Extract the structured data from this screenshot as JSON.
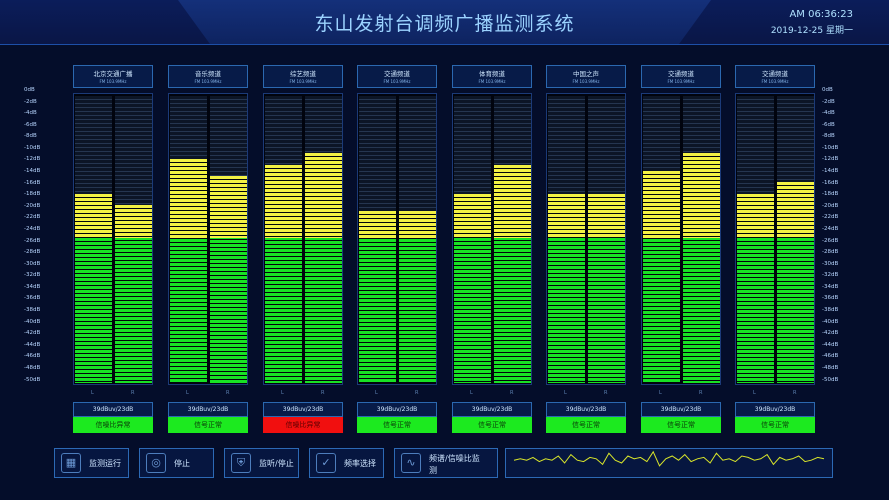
{
  "header": {
    "title": "东山发射台调频广播监测系统",
    "time": "AM 06:36:23",
    "date": "2019-12-25  星期一"
  },
  "scale_ticks": [
    "0dB",
    "-2dB",
    "-4dB",
    "-6dB",
    "-8dB",
    "-10dB",
    "-12dB",
    "-14dB",
    "-16dB",
    "-18dB",
    "-20dB",
    "-22dB",
    "-24dB",
    "-26dB",
    "-28dB",
    "-30dB",
    "-32dB",
    "-34dB",
    "-36dB",
    "-38dB",
    "-40dB",
    "-42dB",
    "-44dB",
    "-46dB",
    "-48dB",
    "-50dB"
  ],
  "right_scale_ticks": [
    "0dB",
    "-2dB",
    "-4dB",
    "-6dB",
    "-8dB",
    "-10dB",
    "-12dB",
    "-14dB",
    "-16dB",
    "-18dB",
    "-20dB",
    "-22dB",
    "-24dB",
    "-26dB",
    "-28dB",
    "-30dB",
    "-32dB",
    "-34dB",
    "-36dB",
    "-38dB",
    "-40dB",
    "-42dB",
    "-44dB",
    "-46dB",
    "-48dB",
    "-50dB"
  ],
  "lr_labels": {
    "left": "L",
    "right": "R"
  },
  "channels": [
    {
      "name": "北京交通广播",
      "freq": "FM 103.9MHz",
      "level_l_db": -17,
      "level_r_db": -19,
      "value": "39dBuv/23dB",
      "status": "信噪比异常",
      "alarm": false
    },
    {
      "name": "音乐频道",
      "freq": "FM 103.9MHz",
      "level_l_db": -11,
      "level_r_db": -14,
      "value": "39dBuv/23dB",
      "status": "信号正常",
      "alarm": false
    },
    {
      "name": "综艺频道",
      "freq": "FM 103.9MHz",
      "level_l_db": -12,
      "level_r_db": -10,
      "value": "39dBuv/23dB",
      "status": "信噪比异常",
      "alarm": true
    },
    {
      "name": "交通频道",
      "freq": "FM 103.9MHz",
      "level_l_db": -20,
      "level_r_db": -20,
      "value": "39dBuv/23dB",
      "status": "信号正常",
      "alarm": false
    },
    {
      "name": "体育频道",
      "freq": "FM 103.9MHz",
      "level_l_db": -17,
      "level_r_db": -12,
      "value": "39dBuv/23dB",
      "status": "信号正常",
      "alarm": false
    },
    {
      "name": "中国之声",
      "freq": "FM 103.9MHz",
      "level_l_db": -17,
      "level_r_db": -17,
      "value": "39dBuv/23dB",
      "status": "信号正常",
      "alarm": false
    },
    {
      "name": "交通频道",
      "freq": "FM 103.9MHz",
      "level_l_db": -13,
      "level_r_db": -10,
      "value": "39dBuv/23dB",
      "status": "信号正常",
      "alarm": false
    },
    {
      "name": "交通频道",
      "freq": "FM 103.9MHz",
      "level_l_db": -17,
      "level_r_db": -15,
      "value": "39dBuv/23dB",
      "status": "信号正常",
      "alarm": false
    }
  ],
  "controls": [
    {
      "label": "监测运行",
      "icon": "monitor-run-icon"
    },
    {
      "label": "停止",
      "icon": "stop-icon"
    },
    {
      "label": "监听/停止",
      "icon": "listen-shield-icon"
    },
    {
      "label": "频率选择",
      "icon": "frequency-select-icon"
    },
    {
      "label": "频谱/信噪比监测",
      "icon": "spectrum-icon"
    }
  ],
  "waveform": [
    12,
    13,
    12,
    14,
    11,
    13,
    12,
    15,
    10,
    16,
    12,
    11,
    14,
    13,
    9,
    17,
    12,
    10,
    15,
    13,
    14,
    11,
    18,
    8,
    13,
    15,
    12,
    16,
    11,
    13,
    14,
    10,
    17,
    12,
    13,
    11,
    15,
    14,
    12,
    13,
    16,
    9,
    14,
    12,
    13,
    15,
    11,
    12,
    14,
    13
  ]
}
